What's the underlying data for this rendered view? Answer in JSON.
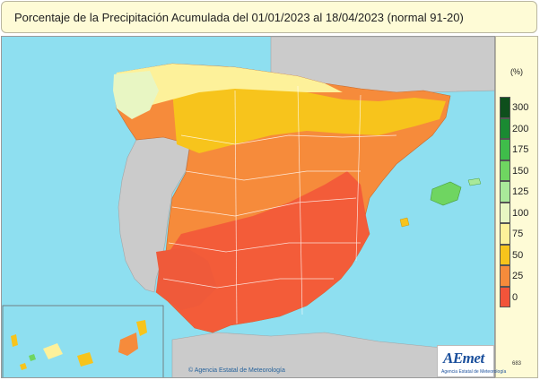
{
  "title": "Porcentaje de la Precipitación Acumulada  del 01/01/2023 al 18/04/2023  (normal 91-20)",
  "legend": {
    "unit": "(%)",
    "items": [
      {
        "label": "300",
        "color": "#0e4f1c"
      },
      {
        "label": "200",
        "color": "#1a8a32"
      },
      {
        "label": "175",
        "color": "#3fbd4a"
      },
      {
        "label": "150",
        "color": "#6fd561"
      },
      {
        "label": "125",
        "color": "#a9e99a"
      },
      {
        "label": "100",
        "color": "#e8f6c3"
      },
      {
        "label": "75",
        "color": "#fdf19a"
      },
      {
        "label": "50",
        "color": "#f7c41c"
      },
      {
        "label": "25",
        "color": "#f68b3b"
      },
      {
        "label": "0",
        "color": "#f2543a"
      }
    ],
    "code": "683"
  },
  "logo": {
    "word": "AEmet",
    "subtitle": "Agencia Estatal de Meteorología"
  },
  "credit": "© Agencia Estatal de Meteorología",
  "colors": {
    "sea": "#8edff0",
    "land_other": "#cbcbcb",
    "panel": "#fefbd6"
  }
}
